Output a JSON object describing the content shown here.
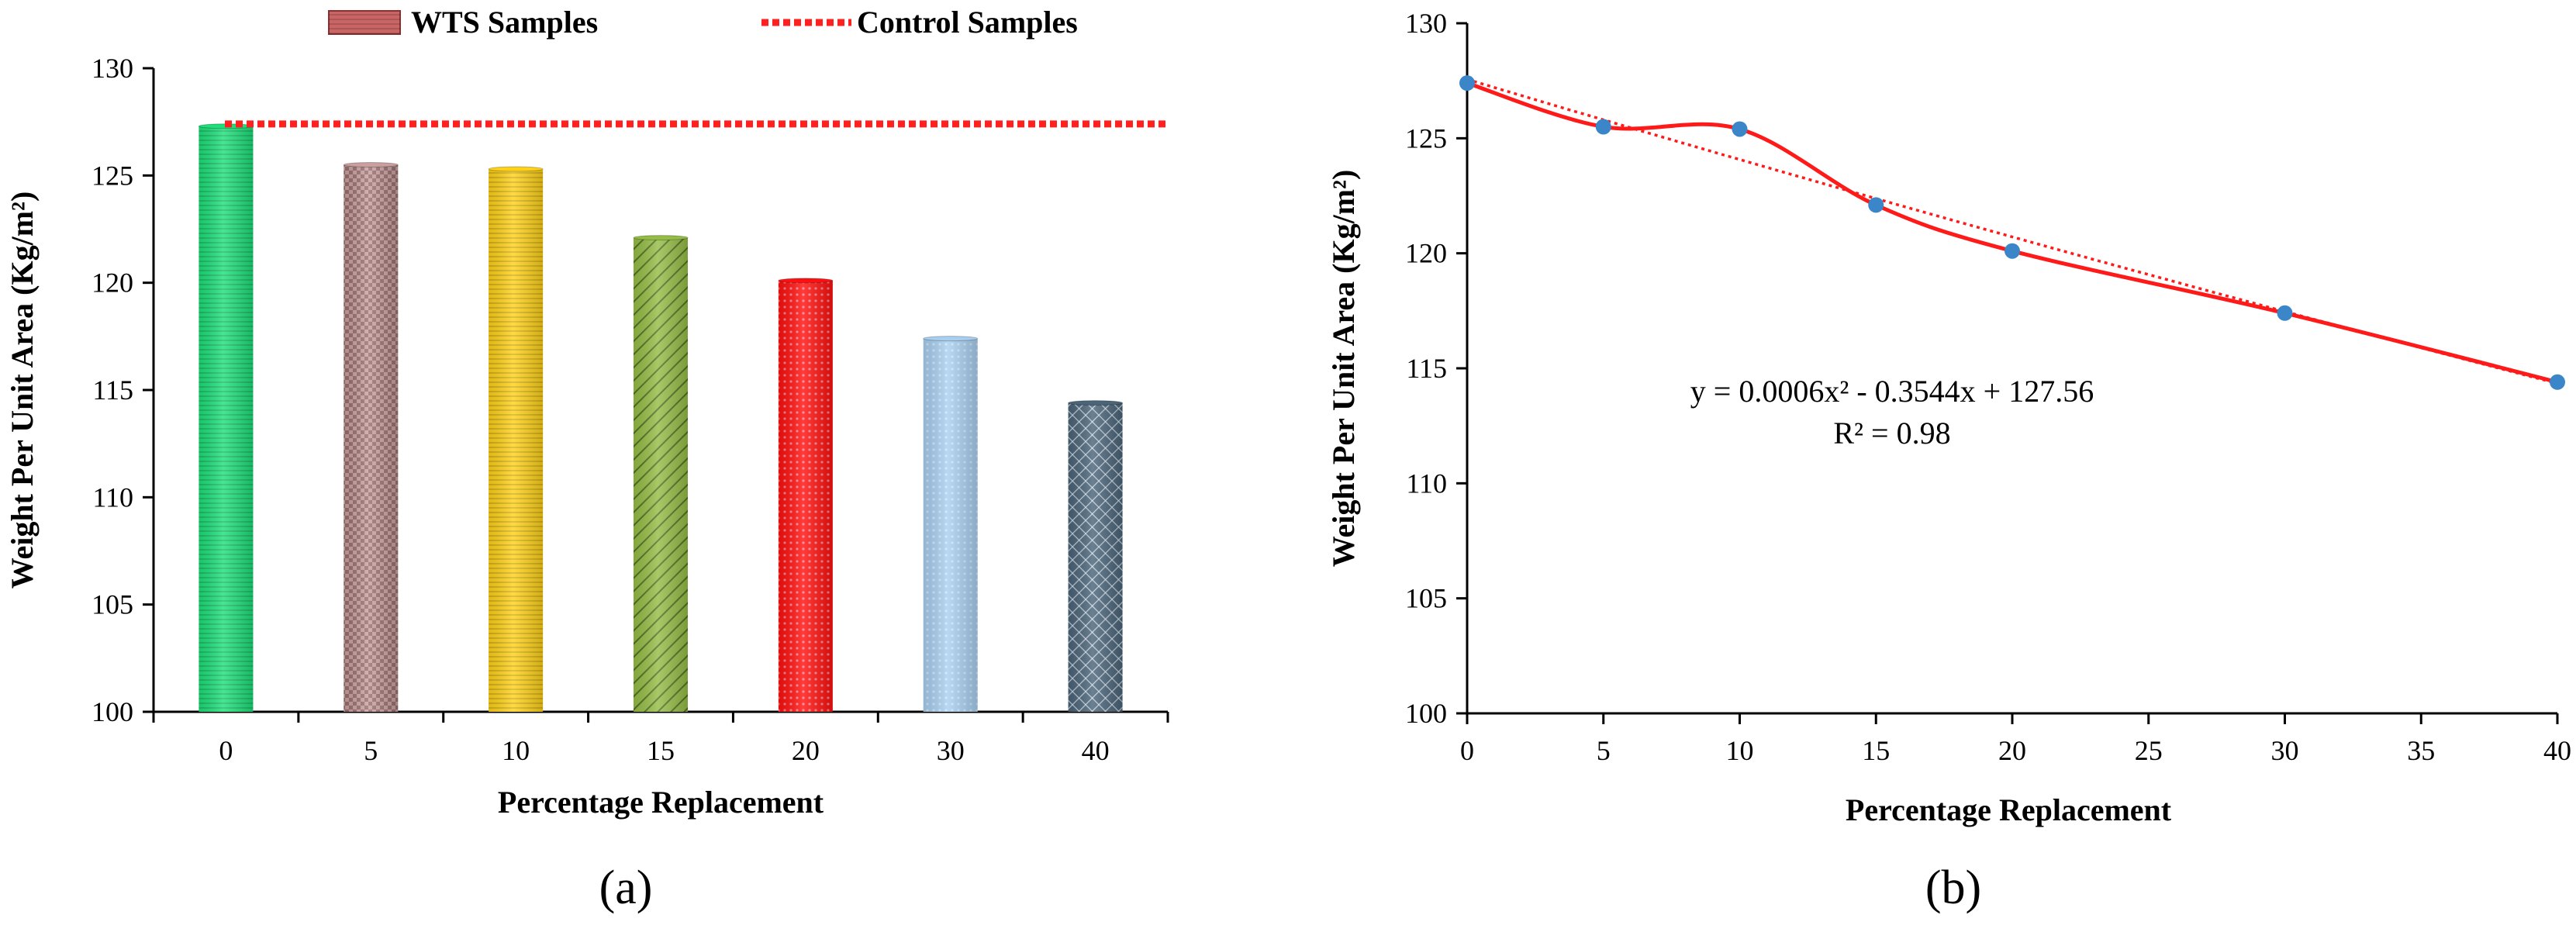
{
  "chart_data": [
    {
      "type": "bar",
      "panel_label": "(a)",
      "categories": [
        "0",
        "5",
        "10",
        "15",
        "20",
        "30",
        "40"
      ],
      "values": [
        127.3,
        125.5,
        125.3,
        122.1,
        120.1,
        117.4,
        114.4
      ],
      "bar_colors": [
        "#1ee07a",
        "#c9a09f",
        "#ffd21a",
        "#95bd45",
        "#ff1010",
        "#a8cff0",
        "#4a6478"
      ],
      "bar_patterns": [
        "hlines",
        "checker",
        "hlines",
        "diag",
        "dots",
        "dots",
        "cross"
      ],
      "xlabel": "Percentage  Replacement",
      "ylabel": "Weight Per Unit Area (Kg/m²)",
      "ylim": [
        100,
        130
      ],
      "yticks": [
        "100",
        "105",
        "110",
        "115",
        "120",
        "125",
        "130"
      ],
      "control_value": 127.4,
      "control_color": "#ff2020",
      "legend": {
        "placement": "top",
        "wts_label": "WTS Samples",
        "control_label": "Control Samples"
      }
    },
    {
      "type": "line",
      "panel_label": "(b)",
      "x": [
        0,
        5,
        10,
        15,
        20,
        30,
        40
      ],
      "y": [
        127.4,
        125.5,
        125.4,
        122.1,
        120.1,
        117.4,
        114.4
      ],
      "xlim": [
        0,
        40
      ],
      "ylim": [
        100,
        130
      ],
      "xticks": [
        "0",
        "5",
        "10",
        "15",
        "20",
        "25",
        "30",
        "35",
        "40"
      ],
      "yticks": [
        "100",
        "105",
        "110",
        "115",
        "120",
        "125",
        "130"
      ],
      "xlabel": "Percentage  Replacement",
      "ylabel": "Weight Per Unit Area (Kg/m²)",
      "line_color": "#ff1a1a",
      "marker_color": "#3a86c8",
      "trendline": {
        "a": 0.0006,
        "b": -0.3544,
        "c": 127.56,
        "color": "#ff1a1a"
      },
      "equation": "y = 0.0006x² - 0.3544x + 127.56",
      "r_squared": "R² = 0.98"
    }
  ]
}
